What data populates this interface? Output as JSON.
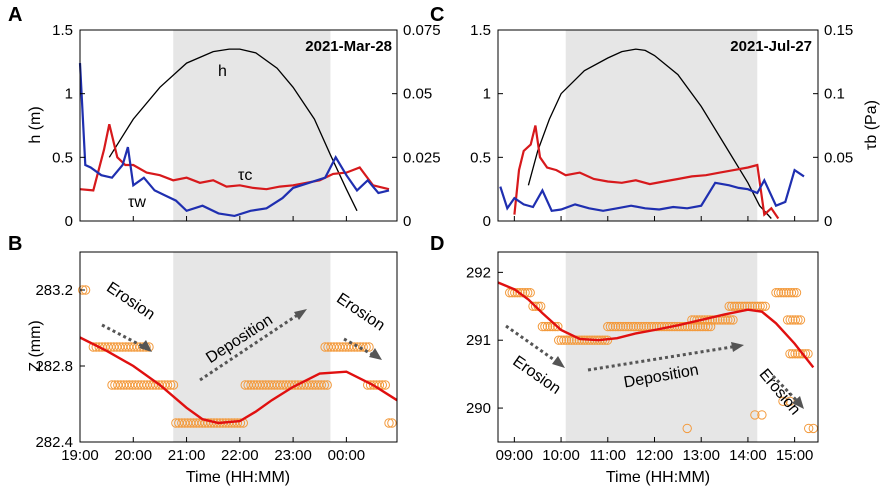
{
  "chart_data": [
    {
      "panel": "A",
      "type": "line",
      "date_label": "2021-Mar-28",
      "ylabel_left": "h (m)",
      "ylabel_right": "τb (Pa)",
      "ylim_left": [
        0,
        1.5
      ],
      "ylim_right": [
        0,
        0.075
      ],
      "yticks_left": [
        "0",
        "0.5",
        "1",
        "1.5"
      ],
      "yticks_right": [
        "0",
        "0.025",
        "0.05",
        "0.075"
      ],
      "xlim_hours": [
        19.0,
        24.95
      ],
      "shade_hours": [
        20.75,
        23.7
      ],
      "annotations": {
        "h": "h",
        "tau_c": "τc",
        "tau_w": "τw"
      },
      "series": [
        {
          "name": "h",
          "axis": "left",
          "color": "#000000",
          "x": [
            19.55,
            20.0,
            20.5,
            21.0,
            21.5,
            21.8,
            22.0,
            22.3,
            22.7,
            23.0,
            23.4,
            23.7,
            24.0,
            24.2
          ],
          "y": [
            0.5,
            0.8,
            1.05,
            1.24,
            1.33,
            1.35,
            1.35,
            1.32,
            1.2,
            1.05,
            0.8,
            0.52,
            0.25,
            0.08
          ]
        },
        {
          "name": "tau_c",
          "axis": "right",
          "color": "#d7191c",
          "x": [
            19.0,
            19.25,
            19.45,
            19.55,
            19.7,
            19.85,
            20.0,
            20.25,
            20.5,
            20.75,
            21.0,
            21.25,
            21.5,
            21.75,
            22.0,
            22.25,
            22.5,
            22.75,
            23.0,
            23.25,
            23.5,
            23.75,
            24.0,
            24.25,
            24.5,
            24.8
          ],
          "y": [
            0.0125,
            0.012,
            0.028,
            0.038,
            0.025,
            0.022,
            0.022,
            0.019,
            0.018,
            0.016,
            0.017,
            0.015,
            0.016,
            0.0135,
            0.014,
            0.013,
            0.0125,
            0.0135,
            0.014,
            0.015,
            0.016,
            0.0185,
            0.019,
            0.021,
            0.014,
            0.0125
          ]
        },
        {
          "name": "tau_w",
          "axis": "right",
          "color": "#1f2fb0",
          "x": [
            19.0,
            19.1,
            19.2,
            19.4,
            19.6,
            19.8,
            19.9,
            20.0,
            20.2,
            20.4,
            20.6,
            20.8,
            21.0,
            21.3,
            21.6,
            21.9,
            22.2,
            22.5,
            22.8,
            23.0,
            23.3,
            23.6,
            23.8,
            24.0,
            24.2,
            24.4,
            24.6,
            24.8
          ],
          "y": [
            0.062,
            0.022,
            0.021,
            0.018,
            0.017,
            0.022,
            0.029,
            0.014,
            0.017,
            0.012,
            0.01,
            0.008,
            0.004,
            0.006,
            0.003,
            0.002,
            0.004,
            0.005,
            0.009,
            0.013,
            0.015,
            0.017,
            0.025,
            0.018,
            0.012,
            0.016,
            0.011,
            0.012
          ]
        }
      ]
    },
    {
      "panel": "B",
      "type": "scatter",
      "ylabel": "Z (mm)",
      "xlabel": "Time (HH:MM)",
      "ylim": [
        282.4,
        283.4
      ],
      "yticks": [
        "282.4",
        "282.8",
        "283.2"
      ],
      "xlim_hours": [
        19.0,
        24.95
      ],
      "xticks_hours": [
        19,
        20,
        21,
        22,
        23,
        24
      ],
      "xtick_labels": [
        "19:00",
        "20:00",
        "21:00",
        "22:00",
        "23:00",
        "00:00"
      ],
      "shade_hours": [
        20.75,
        23.7
      ],
      "text_labels": [
        "Erosion",
        "Deposition",
        "Erosion"
      ],
      "obs_color": "#f39a3c",
      "fit_color": "#e01010",
      "observations": [
        {
          "x_start": 19.05,
          "x_end": 19.15,
          "y": 283.2
        },
        {
          "x_start": 19.25,
          "x_end": 20.3,
          "y": 282.9
        },
        {
          "x_start": 19.6,
          "x_end": 20.8,
          "y": 282.7
        },
        {
          "x_start": 20.8,
          "x_end": 22.1,
          "y": 282.5
        },
        {
          "x_start": 22.1,
          "x_end": 23.65,
          "y": 282.7
        },
        {
          "x_start": 23.6,
          "x_end": 24.45,
          "y": 282.9
        },
        {
          "x_start": 24.4,
          "x_end": 24.75,
          "y": 282.7
        },
        {
          "x_start": 24.8,
          "x_end": 24.9,
          "y": 282.5
        }
      ],
      "fit": {
        "x": [
          19.0,
          19.5,
          20.0,
          20.5,
          21.0,
          21.3,
          21.6,
          22.0,
          22.3,
          22.6,
          23.0,
          23.5,
          24.0,
          24.5,
          24.95
        ],
        "y": [
          282.95,
          282.88,
          282.8,
          282.7,
          282.58,
          282.52,
          282.5,
          282.51,
          282.56,
          282.62,
          282.69,
          282.76,
          282.77,
          282.7,
          282.62
        ]
      }
    },
    {
      "panel": "C",
      "type": "line",
      "date_label": "2021-Jul-27",
      "ylabel_right": "τb (Pa)",
      "ylim_left": [
        0,
        1.5
      ],
      "ylim_right": [
        0,
        0.15
      ],
      "yticks_left": [
        "0",
        "0.5",
        "1",
        "1.5"
      ],
      "yticks_right": [
        "0",
        "0.05",
        "0.1",
        "0.15"
      ],
      "xlim_hours": [
        8.65,
        15.5
      ],
      "shade_hours": [
        10.1,
        14.2
      ],
      "series": [
        {
          "name": "h",
          "axis": "left",
          "color": "#000000",
          "x": [
            9.3,
            9.5,
            9.75,
            10.0,
            10.5,
            11.0,
            11.3,
            11.6,
            11.8,
            12.0,
            12.5,
            13.0,
            13.5,
            14.0,
            14.25,
            14.5
          ],
          "y": [
            0.28,
            0.55,
            0.8,
            1.0,
            1.18,
            1.28,
            1.33,
            1.35,
            1.34,
            1.3,
            1.15,
            0.9,
            0.6,
            0.3,
            0.12,
            0.02
          ]
        },
        {
          "name": "tau_c",
          "axis": "right",
          "color": "#d7191c",
          "x": [
            9.0,
            9.1,
            9.2,
            9.35,
            9.45,
            9.55,
            9.7,
            9.9,
            10.1,
            10.4,
            10.7,
            11.0,
            11.3,
            11.6,
            11.9,
            12.2,
            12.5,
            12.8,
            13.1,
            13.4,
            13.7,
            14.0,
            14.2,
            14.35,
            14.5,
            14.65
          ],
          "y": [
            0.005,
            0.04,
            0.055,
            0.06,
            0.075,
            0.05,
            0.042,
            0.04,
            0.036,
            0.038,
            0.033,
            0.031,
            0.03,
            0.032,
            0.029,
            0.031,
            0.033,
            0.035,
            0.036,
            0.038,
            0.04,
            0.042,
            0.044,
            0.005,
            0.01,
            0.002
          ]
        },
        {
          "name": "tau_w",
          "axis": "right",
          "color": "#1f2fb0",
          "x": [
            8.7,
            8.85,
            9.0,
            9.2,
            9.4,
            9.6,
            9.8,
            10.0,
            10.3,
            10.6,
            10.9,
            11.2,
            11.5,
            11.8,
            12.1,
            12.4,
            12.7,
            13.0,
            13.3,
            13.6,
            13.8,
            14.0,
            14.2,
            14.35,
            14.6,
            14.8,
            15.0,
            15.2
          ],
          "y": [
            0.027,
            0.01,
            0.018,
            0.013,
            0.011,
            0.024,
            0.008,
            0.009,
            0.013,
            0.01,
            0.008,
            0.01,
            0.012,
            0.01,
            0.009,
            0.011,
            0.01,
            0.012,
            0.03,
            0.028,
            0.026,
            0.025,
            0.022,
            0.032,
            0.012,
            0.015,
            0.04,
            0.035
          ]
        }
      ]
    },
    {
      "panel": "D",
      "type": "scatter",
      "xlabel": "Time (HH:MM)",
      "ylim": [
        289.5,
        292.3
      ],
      "yticks": [
        "290",
        "291",
        "292"
      ],
      "xlim_hours": [
        8.65,
        15.5
      ],
      "xticks_hours": [
        9,
        10,
        11,
        12,
        13,
        14,
        15
      ],
      "xtick_labels": [
        "09:00",
        "10:00",
        "11:00",
        "12:00",
        "13:00",
        "14:00",
        "15:00"
      ],
      "shade_hours": [
        10.1,
        14.2
      ],
      "text_labels": [
        "Erosion",
        "Deposition",
        "Erosion"
      ],
      "obs_color": "#f39a3c",
      "fit_color": "#e01010",
      "observations": [
        {
          "x_start": 8.9,
          "x_end": 9.35,
          "y": 291.7
        },
        {
          "x_start": 9.4,
          "x_end": 9.6,
          "y": 291.5
        },
        {
          "x_start": 9.6,
          "x_end": 9.95,
          "y": 291.2
        },
        {
          "x_start": 9.95,
          "x_end": 11.0,
          "y": 291.0
        },
        {
          "x_start": 11.0,
          "x_end": 13.2,
          "y": 291.2
        },
        {
          "x_start": 12.8,
          "x_end": 13.7,
          "y": 291.3
        },
        {
          "x_start": 13.6,
          "x_end": 14.4,
          "y": 291.5
        },
        {
          "x_start": 14.6,
          "x_end": 15.05,
          "y": 291.7
        },
        {
          "x_start": 14.85,
          "x_end": 15.15,
          "y": 291.3
        },
        {
          "x_start": 14.9,
          "x_end": 15.3,
          "y": 290.8
        }
      ],
      "scattered_points": [
        {
          "x": 12.7,
          "y": 289.7
        },
        {
          "x": 14.15,
          "y": 289.9
        },
        {
          "x": 14.3,
          "y": 289.9
        },
        {
          "x": 14.75,
          "y": 290.1
        },
        {
          "x": 14.9,
          "y": 290.1
        },
        {
          "x": 15.3,
          "y": 289.7
        },
        {
          "x": 15.4,
          "y": 289.7
        }
      ],
      "fit": {
        "x": [
          8.65,
          9.0,
          9.3,
          9.6,
          10.0,
          10.4,
          10.8,
          11.2,
          11.6,
          12.0,
          12.5,
          13.0,
          13.5,
          14.0,
          14.3,
          14.6,
          15.0,
          15.4
        ],
        "y": [
          291.85,
          291.75,
          291.6,
          291.4,
          291.15,
          291.02,
          291.0,
          291.03,
          291.1,
          291.15,
          291.22,
          291.3,
          291.38,
          291.45,
          291.42,
          291.25,
          290.95,
          290.6
        ]
      }
    }
  ]
}
